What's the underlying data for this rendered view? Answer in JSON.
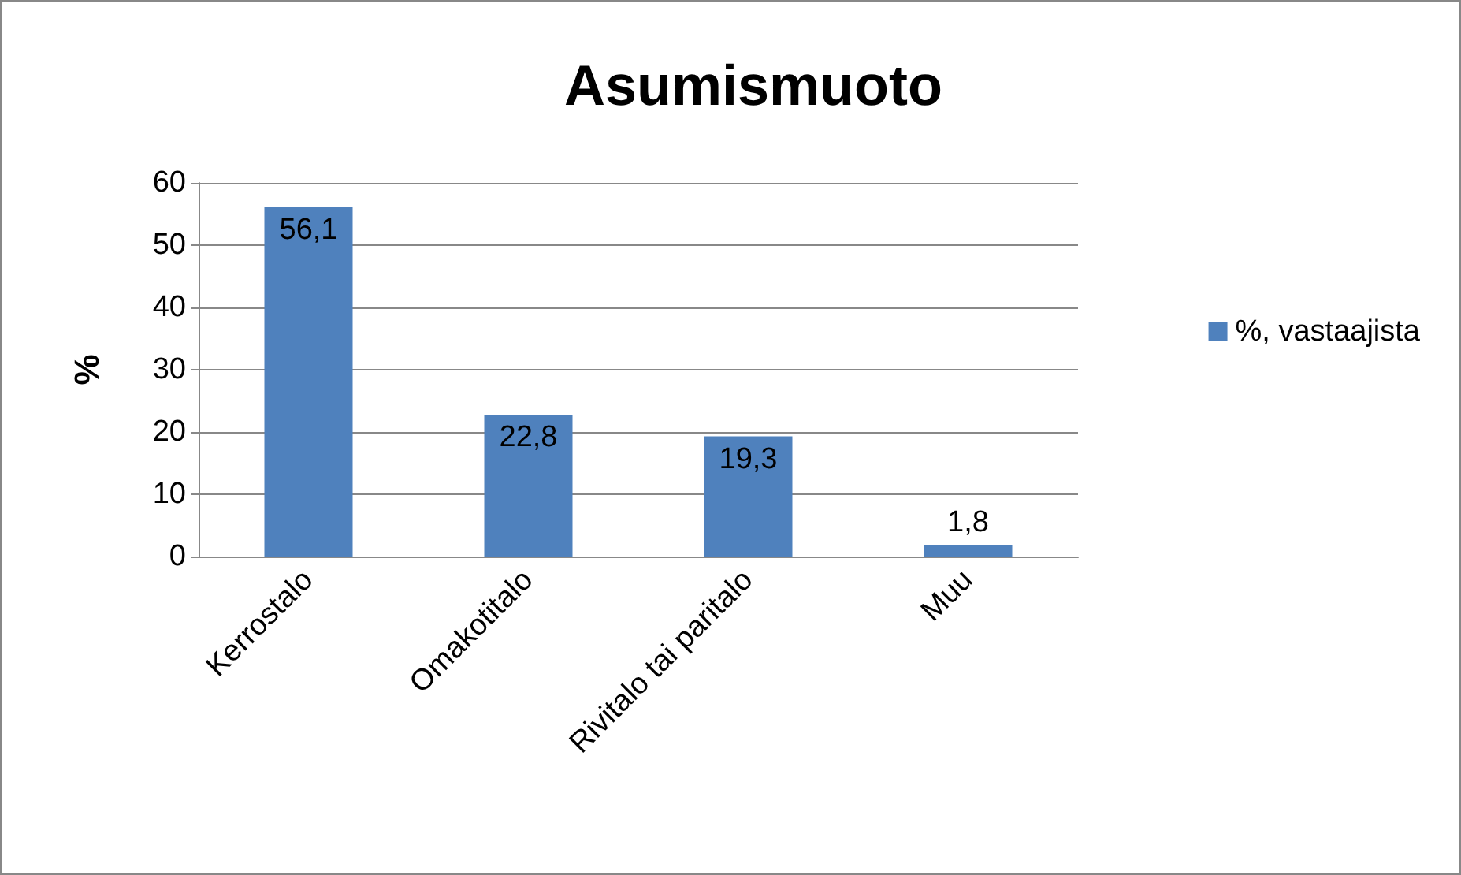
{
  "chart_data": {
    "type": "bar",
    "title": "Asumismuoto",
    "ylabel": "%",
    "categories": [
      "Kerrostalo",
      "Omakotitalo",
      "Rivitalo tai paritalo",
      "Muu"
    ],
    "series": [
      {
        "name": "%, vastaajista",
        "color": "#4f81bd",
        "values": [
          56.1,
          22.8,
          19.3,
          1.8
        ],
        "value_labels": [
          "56,1",
          "22,8",
          "19,3",
          "1,8"
        ]
      }
    ],
    "ylim": [
      0,
      60
    ],
    "yticks": [
      0,
      10,
      20,
      30,
      40,
      50,
      60
    ],
    "grid": "y",
    "legend": "right"
  }
}
